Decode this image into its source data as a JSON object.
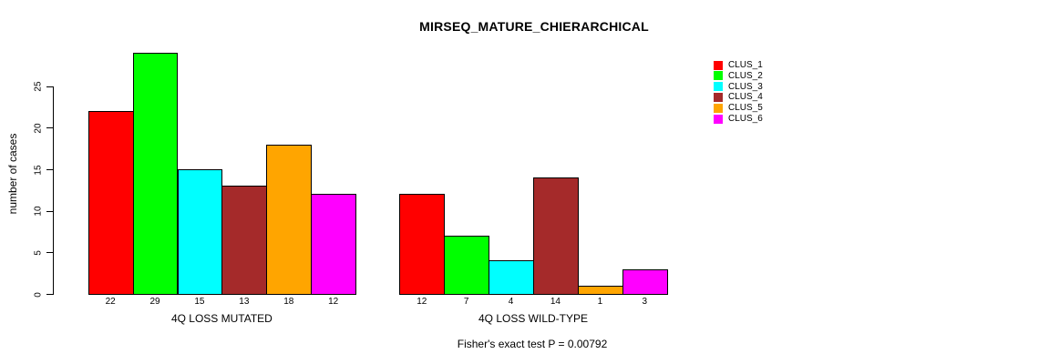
{
  "chart_data": {
    "type": "bar",
    "title": "MIRSEQ_MATURE_CHIERARCHICAL",
    "ylabel": "number of cases",
    "xlabel": "",
    "annotation": "Fisher's exact test P = 0.00792",
    "ylim": [
      0,
      29
    ],
    "yticks": [
      0,
      5,
      10,
      15,
      20,
      25
    ],
    "grid": false,
    "legend_position": "top-right",
    "categories": [
      "CLUS_1",
      "CLUS_2",
      "CLUS_3",
      "CLUS_4",
      "CLUS_5",
      "CLUS_6"
    ],
    "series_colors": [
      "#FF0000",
      "#00FF00",
      "#00FFFF",
      "#A52A2A",
      "#FFA500",
      "#FF00FF"
    ],
    "groups": [
      {
        "label": "4Q LOSS MUTATED",
        "values": [
          22,
          29,
          15,
          13,
          18,
          12
        ]
      },
      {
        "label": "4Q LOSS WILD-TYPE",
        "values": [
          12,
          7,
          4,
          14,
          1,
          3
        ]
      }
    ],
    "legend": [
      {
        "label": "CLUS_1",
        "color": "#FF0000"
      },
      {
        "label": "CLUS_2",
        "color": "#00FF00"
      },
      {
        "label": "CLUS_3",
        "color": "#00FFFF"
      },
      {
        "label": "CLUS_4",
        "color": "#A52A2A"
      },
      {
        "label": "CLUS_5",
        "color": "#FFA500"
      },
      {
        "label": "CLUS_6",
        "color": "#FF00FF"
      }
    ],
    "axis_color": "#000000",
    "bar_border_color": "#000000",
    "background_color": "#FFFFFF"
  }
}
